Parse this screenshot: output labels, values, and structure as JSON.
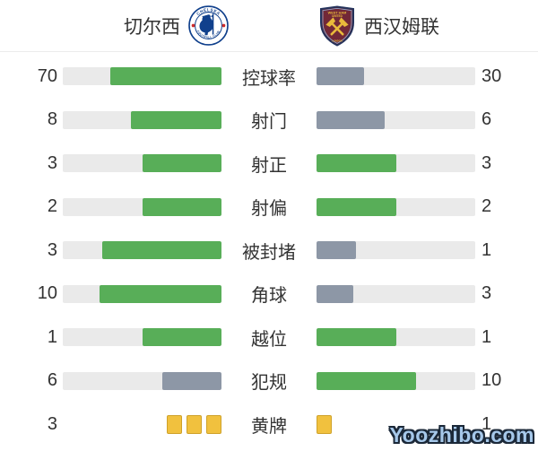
{
  "header": {
    "home_team": {
      "name": "切尔西",
      "badge": {
        "ring_top": "CHELSEA",
        "ring_bottom": "FOOTBALL CLUB"
      }
    },
    "away_team": {
      "name": "西汉姆联",
      "badge": {
        "line1": "WEST HAM",
        "line2": "UNITED",
        "bottom": "LONDON"
      }
    }
  },
  "watermark": {
    "text": "Yoozhibo.com"
  },
  "colors": {
    "green": "#58ae58",
    "gray": "#8d97a6",
    "track": "#eaeaea",
    "card_fill": "#f1c13e",
    "card_border": "#cfa22a",
    "chelsea_blue": "#10408c",
    "westham_claret": "#722837",
    "watermark_fill": "#a6c8ea",
    "watermark_outline": "#1b2838"
  },
  "chart_data": {
    "type": "bar",
    "teams": [
      "切尔西",
      "西汉姆联"
    ],
    "legend_position": "top",
    "rows": [
      {
        "label": "控球率",
        "home": 70,
        "away": 30,
        "home_pct": 70,
        "away_pct": 30,
        "home_color": "green",
        "away_color": "gray",
        "style": "bar"
      },
      {
        "label": "射门",
        "home": 8,
        "away": 6,
        "home_pct": 57.14,
        "away_pct": 42.86,
        "home_color": "green",
        "away_color": "gray",
        "style": "bar"
      },
      {
        "label": "射正",
        "home": 3,
        "away": 3,
        "home_pct": 50,
        "away_pct": 50,
        "home_color": "green",
        "away_color": "green",
        "style": "bar"
      },
      {
        "label": "射偏",
        "home": 2,
        "away": 2,
        "home_pct": 50,
        "away_pct": 50,
        "home_color": "green",
        "away_color": "green",
        "style": "bar"
      },
      {
        "label": "被封堵",
        "home": 3,
        "away": 1,
        "home_pct": 75,
        "away_pct": 25,
        "home_color": "green",
        "away_color": "gray",
        "style": "bar"
      },
      {
        "label": "角球",
        "home": 10,
        "away": 3,
        "home_pct": 76.92,
        "away_pct": 23.08,
        "home_color": "green",
        "away_color": "gray",
        "style": "bar"
      },
      {
        "label": "越位",
        "home": 1,
        "away": 1,
        "home_pct": 50,
        "away_pct": 50,
        "home_color": "green",
        "away_color": "green",
        "style": "bar"
      },
      {
        "label": "犯规",
        "home": 6,
        "away": 10,
        "home_pct": 37.5,
        "away_pct": 62.5,
        "home_color": "gray",
        "away_color": "green",
        "style": "bar"
      },
      {
        "label": "黄牌",
        "home": 3,
        "away": 1,
        "style": "cards"
      }
    ]
  }
}
